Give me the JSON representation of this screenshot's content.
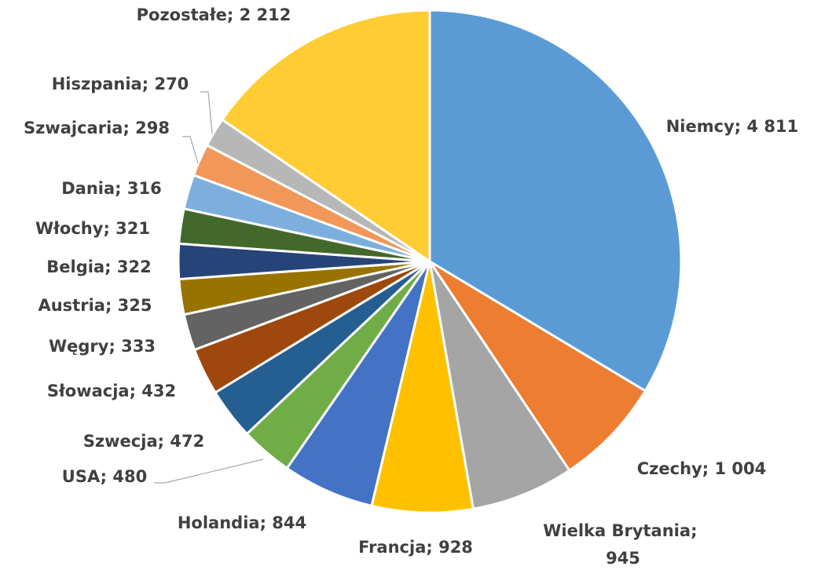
{
  "chart_data": {
    "type": "pie",
    "label_separator": "; ",
    "categories": [
      "Niemcy",
      "Czechy",
      "Wielka Brytania",
      "Francja",
      "Holandia",
      "USA",
      "Szwecja",
      "Słowacja",
      "Węgry",
      "Austria",
      "Belgia",
      "Włochy",
      "Dania",
      "Szwajcaria",
      "Hiszpania",
      "Pozostałe"
    ],
    "values": [
      4811,
      1004,
      945,
      928,
      844,
      480,
      472,
      432,
      333,
      325,
      322,
      321,
      316,
      298,
      270,
      2212
    ],
    "value_labels": [
      "4 811",
      "1 004",
      "945",
      "928",
      "844",
      "480",
      "472",
      "432",
      "333",
      "325",
      "322",
      "321",
      "316",
      "298",
      "270",
      "2 212"
    ],
    "colors": [
      "#5b9bd5",
      "#ed7d31",
      "#a5a5a5",
      "#ffc000",
      "#4472c4",
      "#70ad47",
      "#255e91",
      "#9e480e",
      "#636363",
      "#997300",
      "#264478",
      "#43682b",
      "#7cafdd",
      "#f1975a",
      "#b7b7b7",
      "#ffcd33"
    ]
  }
}
